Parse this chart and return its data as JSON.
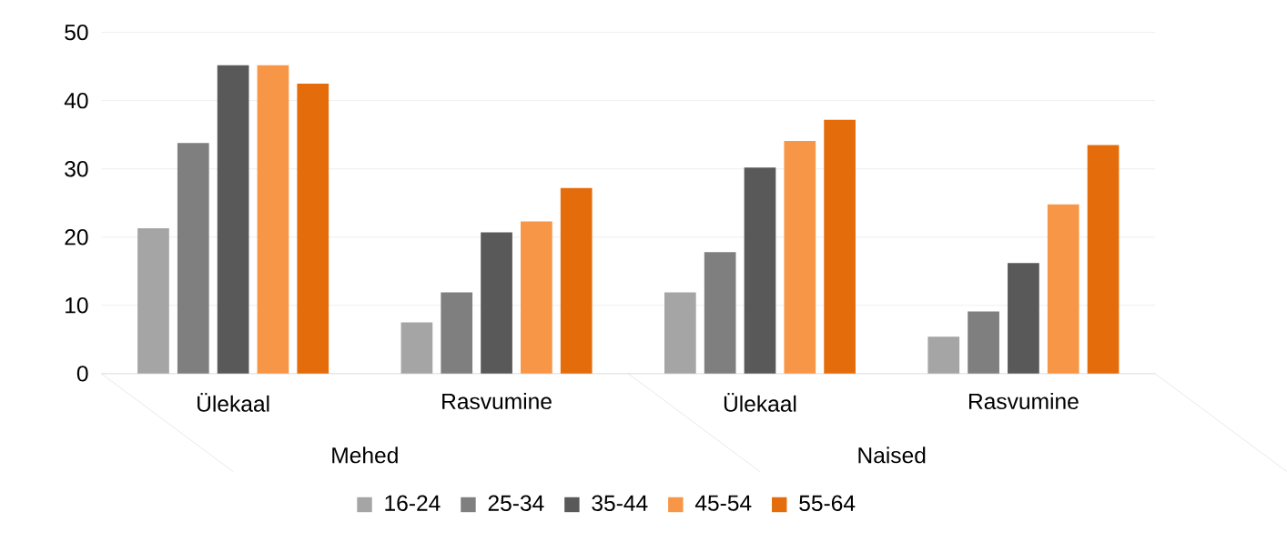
{
  "chart_data": {
    "type": "bar",
    "categories": [
      "Ülekaal",
      "Rasvumine",
      "Ülekaal",
      "Rasvumine"
    ],
    "annotations": [
      "Mehed",
      "Naised"
    ],
    "series": [
      {
        "name": "16-24",
        "color": "#a5a5a5",
        "values": [
          21.3,
          7.5,
          11.9,
          5.4
        ]
      },
      {
        "name": "25-34",
        "color": "#7f7f7f",
        "values": [
          33.8,
          11.9,
          17.8,
          9.1
        ]
      },
      {
        "name": "35-44",
        "color": "#595959",
        "values": [
          45.2,
          20.7,
          30.2,
          16.2
        ]
      },
      {
        "name": "45-54",
        "color": "#f79646",
        "values": [
          45.2,
          22.3,
          34.1,
          24.8
        ]
      },
      {
        "name": "55-64",
        "color": "#e46c0a",
        "values": [
          42.5,
          27.2,
          37.2,
          33.5
        ]
      }
    ],
    "ylim": [
      0,
      50
    ],
    "yticks": [
      0,
      10,
      20,
      30,
      40,
      50
    ],
    "grid": "y",
    "legend": "bottom"
  }
}
